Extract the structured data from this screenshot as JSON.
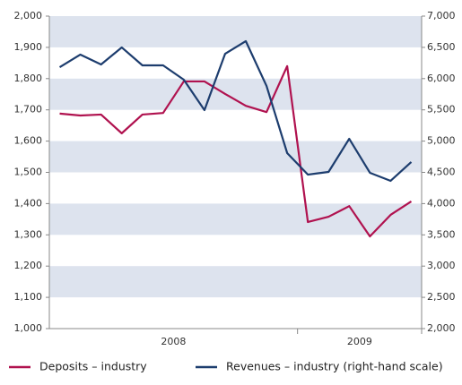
{
  "chart_data": {
    "type": "line",
    "categories": [
      null,
      null,
      null,
      null,
      null,
      null,
      null,
      null,
      null,
      null,
      null,
      null,
      null,
      null,
      null,
      null,
      null,
      null
    ],
    "groups": [
      {
        "label": "2008",
        "count": 12
      },
      {
        "label": "2009",
        "count": 6
      }
    ],
    "series": [
      {
        "name": "Deposits – industry",
        "color": "#b0124f",
        "axis": "y",
        "values": [
          1688,
          1682,
          1685,
          1625,
          1685,
          1690,
          1791,
          1791,
          1751,
          1713,
          1693,
          1840,
          1341,
          1358,
          1392,
          1295,
          1364,
          1407
        ]
      },
      {
        "name": "Revenues – industry (right-hand scale)",
        "color": "#1d3d6e",
        "axis": "y2",
        "values": [
          6183,
          6384,
          6226,
          6499,
          6212,
          6212,
          5983,
          5496,
          6398,
          6599,
          5883,
          4808,
          4464,
          4507,
          5037,
          4493,
          4364,
          4665
        ]
      }
    ],
    "ylim": [
      1000,
      2000
    ],
    "yticks": [
      {
        "value": 1000,
        "label": "1,000"
      },
      {
        "value": 1100,
        "label": "1,100"
      },
      {
        "value": 1200,
        "label": "1,200"
      },
      {
        "value": 1300,
        "label": "1,300"
      },
      {
        "value": 1400,
        "label": "1,400"
      },
      {
        "value": 1500,
        "label": "1,500"
      },
      {
        "value": 1600,
        "label": "1,600"
      },
      {
        "value": 1700,
        "label": "1,700"
      },
      {
        "value": 1800,
        "label": "1,800"
      },
      {
        "value": 1900,
        "label": "1,900"
      },
      {
        "value": 2000,
        "label": "2,000"
      }
    ],
    "y2lim": [
      2000,
      7000
    ],
    "y2ticks": [
      {
        "value": 2000,
        "label": "2,000"
      },
      {
        "value": 2500,
        "label": "2,500"
      },
      {
        "value": 3000,
        "label": "3,000"
      },
      {
        "value": 3500,
        "label": "3,500"
      },
      {
        "value": 4000,
        "label": "4,000"
      },
      {
        "value": 4500,
        "label": "4,500"
      },
      {
        "value": 5000,
        "label": "5,000"
      },
      {
        "value": 5500,
        "label": "5,500"
      },
      {
        "value": 6000,
        "label": "6,000"
      },
      {
        "value": 6500,
        "label": "6,500"
      },
      {
        "value": 7000,
        "label": "7,000"
      }
    ],
    "band_color": "#dde3ee"
  }
}
